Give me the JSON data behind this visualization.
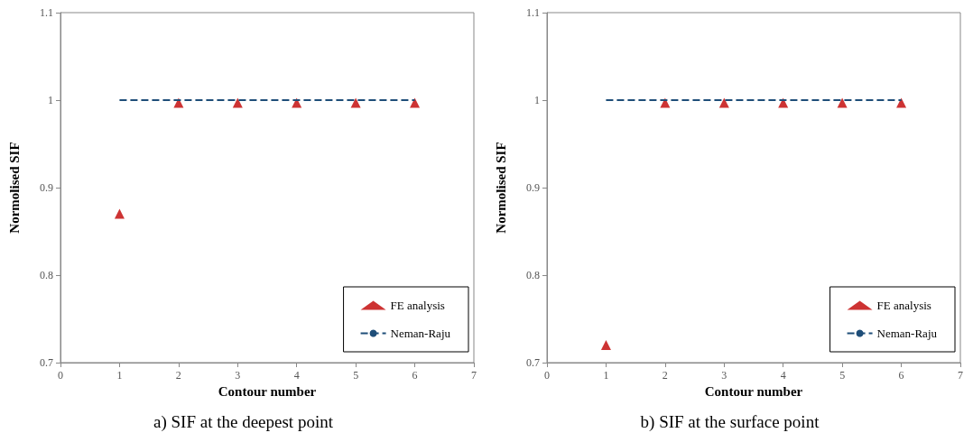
{
  "chart_data": [
    {
      "type": "scatter",
      "title": "a) SIF at the deepest point",
      "xlabel": "Contour number",
      "ylabel": "Normolised SIF",
      "xlim": [
        0,
        7
      ],
      "xticks": [
        0,
        1,
        2,
        3,
        4,
        5,
        6,
        7
      ],
      "ylim": [
        0.7,
        1.1
      ],
      "yticks": [
        0.7,
        0.8,
        0.9,
        1,
        1.1
      ],
      "grid": false,
      "legend": "bottom right",
      "series": [
        {
          "name": "FE analysis",
          "type": "scatter",
          "marker": "triangle",
          "color": "#c00000",
          "x": [
            1,
            2,
            3,
            4,
            5,
            6
          ],
          "values": [
            0.87,
            0.997,
            0.997,
            0.997,
            0.997,
            0.997
          ]
        },
        {
          "name": "Neman-Raju",
          "type": "line",
          "line_style": "dashed",
          "marker": "none",
          "color": "#1f4e79",
          "x": [
            1,
            2,
            3,
            4,
            5,
            6
          ],
          "values": [
            1,
            1,
            1,
            1,
            1,
            1
          ]
        }
      ]
    },
    {
      "type": "scatter",
      "title": "b) SIF at the surface point",
      "xlabel": "Contour number",
      "ylabel": "Normolised SIF",
      "xlim": [
        0,
        7
      ],
      "xticks": [
        0,
        1,
        2,
        3,
        4,
        5,
        6,
        7
      ],
      "ylim": [
        0.7,
        1.1
      ],
      "yticks": [
        0.7,
        0.8,
        0.9,
        1,
        1.1
      ],
      "grid": false,
      "legend": "bottom right",
      "series": [
        {
          "name": "FE analysis",
          "type": "scatter",
          "marker": "triangle",
          "color": "#c00000",
          "x": [
            1,
            2,
            3,
            4,
            5,
            6
          ],
          "values": [
            0.72,
            0.997,
            0.997,
            0.997,
            0.997,
            0.997
          ]
        },
        {
          "name": "Neman-Raju",
          "type": "line",
          "line_style": "dashed",
          "marker": "none",
          "color": "#1f4e79",
          "x": [
            1,
            2,
            3,
            4,
            5,
            6
          ],
          "values": [
            1,
            1,
            1,
            1,
            1,
            1
          ]
        }
      ]
    }
  ]
}
